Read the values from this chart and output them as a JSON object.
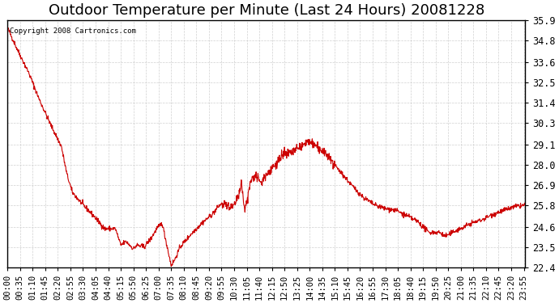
{
  "title": "Outdoor Temperature per Minute (Last 24 Hours) 20081228",
  "copyright_text": "Copyright 2008 Cartronics.com",
  "y_ticks": [
    22.4,
    23.5,
    24.6,
    25.8,
    26.9,
    28.0,
    29.1,
    30.3,
    31.4,
    32.5,
    33.6,
    34.8,
    35.9
  ],
  "ylim": [
    22.4,
    35.9
  ],
  "line_color": "#cc0000",
  "background_color": "#ffffff",
  "grid_color": "#cccccc",
  "title_fontsize": 13,
  "tick_fontsize": 8.5,
  "x_tick_interval": 35,
  "control_points_x": [
    0,
    30,
    60,
    90,
    120,
    150,
    165,
    180,
    210,
    240,
    270,
    300,
    315,
    330,
    340,
    350,
    360,
    380,
    400,
    415,
    430,
    455,
    465,
    480,
    510,
    540,
    570,
    590,
    605,
    620,
    635,
    650,
    660,
    675,
    690,
    705,
    720,
    735,
    750,
    765,
    780,
    800,
    820,
    835,
    850,
    870,
    900,
    930,
    960,
    990,
    1020,
    1050,
    1080,
    1110,
    1140,
    1170,
    1185,
    1200,
    1215,
    1230,
    1245,
    1260,
    1290,
    1320,
    1350,
    1380,
    1410,
    1439
  ],
  "control_points_y": [
    35.5,
    34.2,
    33.0,
    31.5,
    30.2,
    29.0,
    27.5,
    26.5,
    25.8,
    25.2,
    24.5,
    24.5,
    23.6,
    23.8,
    23.6,
    23.4,
    23.6,
    23.5,
    24.0,
    24.5,
    24.8,
    22.5,
    22.8,
    23.5,
    24.2,
    24.8,
    25.3,
    25.8,
    25.8,
    25.6,
    26.0,
    26.8,
    25.5,
    27.0,
    27.5,
    27.0,
    27.5,
    27.8,
    28.2,
    28.5,
    28.6,
    28.8,
    29.0,
    29.3,
    29.1,
    28.8,
    28.2,
    27.5,
    26.8,
    26.2,
    25.8,
    25.6,
    25.5,
    25.2,
    24.9,
    24.3,
    24.3,
    24.3,
    24.1,
    24.2,
    24.4,
    24.5,
    24.8,
    25.0,
    25.3,
    25.5,
    25.7,
    25.8
  ]
}
